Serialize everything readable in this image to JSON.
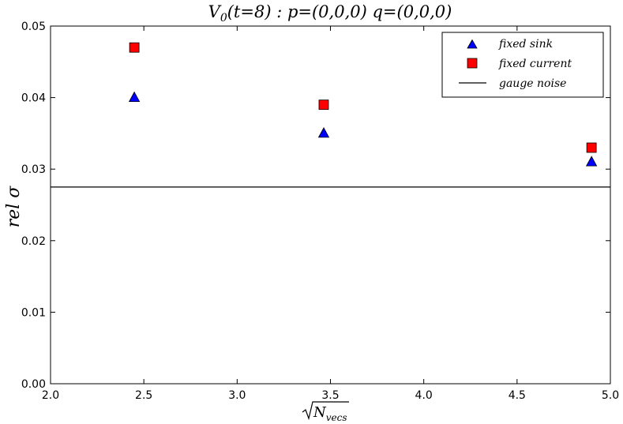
{
  "chart_data": {
    "type": "scatter",
    "title": "V_0(t=8) : p=(0,0,0)  q=(0,0,0)",
    "xlabel": "√N_vecs",
    "ylabel": "rel σ",
    "xlim": [
      2.0,
      5.0
    ],
    "ylim": [
      0.0,
      0.05
    ],
    "x_ticks": [
      "2.0",
      "2.5",
      "3.0",
      "3.5",
      "4.0",
      "4.5",
      "5.0"
    ],
    "y_ticks": [
      "0.00",
      "0.01",
      "0.02",
      "0.03",
      "0.04",
      "0.05"
    ],
    "grid": false,
    "legend_position": "top-right",
    "series": [
      {
        "name": "fixed sink",
        "marker": "triangle",
        "color": "#0000ff",
        "x": [
          2.449,
          3.464,
          4.899
        ],
        "y": [
          0.04,
          0.035,
          0.031
        ]
      },
      {
        "name": "fixed current",
        "marker": "square",
        "color": "#ff0000",
        "x": [
          2.449,
          3.464,
          4.899
        ],
        "y": [
          0.047,
          0.039,
          0.033
        ]
      }
    ],
    "reference_lines": [
      {
        "name": "gauge noise",
        "type": "horizontal",
        "y": 0.0275,
        "color": "#000000"
      }
    ]
  }
}
